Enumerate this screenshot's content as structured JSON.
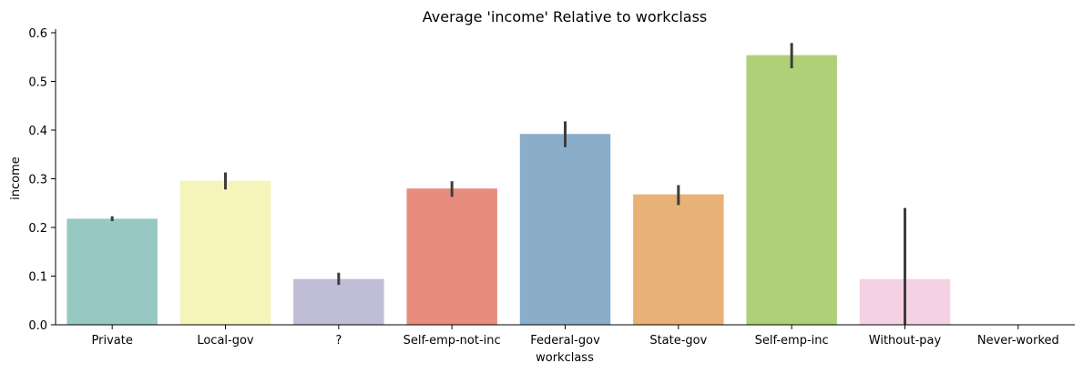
{
  "chart_data": {
    "type": "bar",
    "title": "Average 'income' Relative to workclass",
    "xlabel": "workclass",
    "ylabel": "income",
    "categories": [
      "Private",
      "Local-gov",
      "?",
      "Self-emp-not-inc",
      "Federal-gov",
      "State-gov",
      "Self-emp-inc",
      "Without-pay",
      "Never-worked"
    ],
    "values": [
      0.218,
      0.296,
      0.094,
      0.28,
      0.392,
      0.268,
      0.554,
      0.094,
      0.0
    ],
    "error_low": [
      0.213,
      0.278,
      0.082,
      0.263,
      0.365,
      0.246,
      0.527,
      0.0,
      null
    ],
    "error_high": [
      0.223,
      0.313,
      0.107,
      0.295,
      0.418,
      0.287,
      0.579,
      0.24,
      null
    ],
    "colors": [
      "#97c9c2",
      "#f5f4bb",
      "#c0bdd7",
      "#e88c80",
      "#8aaec9",
      "#e8b175",
      "#b0d077",
      "#f5d2e3",
      "#d9d9d9"
    ],
    "ylim": [
      0,
      0.6
    ],
    "yticks": [
      "0.0",
      "0.1",
      "0.2",
      "0.3",
      "0.4",
      "0.5",
      "0.6"
    ],
    "grid": false
  }
}
